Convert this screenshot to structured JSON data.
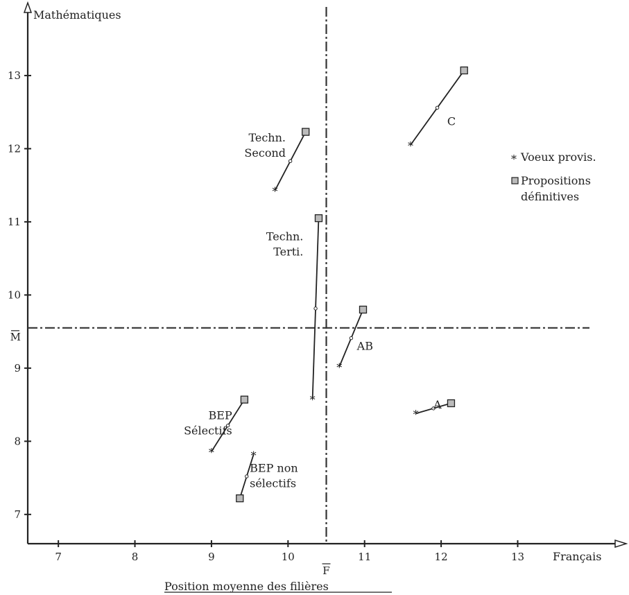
{
  "chart_data": {
    "type": "scatter",
    "title": "Position moyenne des filières",
    "xlabel": "Français",
    "ylabel": "Mathématiques",
    "xlim": [
      6.6,
      14.3
    ],
    "ylim": [
      6.6,
      13.9
    ],
    "xticks": [
      "7",
      "8",
      "9",
      "10",
      "11",
      "12",
      "13"
    ],
    "xtick_values": [
      7,
      8,
      9,
      10,
      11,
      12,
      13
    ],
    "yticks": [
      "7",
      "8",
      "9",
      "10",
      "11",
      "12",
      "13"
    ],
    "ytick_values": [
      7,
      8,
      9,
      10,
      11,
      12,
      13
    ],
    "reference_lines": {
      "mean_math": {
        "value": 9.55,
        "label": "M"
      },
      "mean_french": {
        "value": 10.5,
        "label": "F"
      }
    },
    "legend": {
      "position": "right",
      "entries": [
        {
          "marker": "*",
          "label": "Voeux provis."
        },
        {
          "marker": "square",
          "label": "Propositions définitives",
          "lines": [
            "Propositions",
            "définitives"
          ]
        }
      ]
    },
    "groups": [
      {
        "name": "Techn. Second",
        "lines": [
          "Techn.",
          "Second"
        ],
        "voeux": [
          9.83,
          11.43
        ],
        "propositions": [
          10.23,
          12.23
        ]
      },
      {
        "name": "Techn. Terti.",
        "lines": [
          "Techn.",
          "Terti."
        ],
        "voeux": [
          10.32,
          8.58
        ],
        "propositions": [
          10.4,
          11.05
        ]
      },
      {
        "name": "C",
        "lines": [
          "C"
        ],
        "voeux": [
          11.6,
          12.05
        ],
        "propositions": [
          12.3,
          13.07
        ]
      },
      {
        "name": "AB",
        "lines": [
          "AB"
        ],
        "voeux": [
          10.67,
          9.02
        ],
        "propositions": [
          10.98,
          9.8
        ]
      },
      {
        "name": "A",
        "lines": [
          "A"
        ],
        "voeux": [
          11.67,
          8.38
        ],
        "propositions": [
          12.13,
          8.52
        ]
      },
      {
        "name": "BEP Sélectifs",
        "lines": [
          "BEP",
          "Sélectifs"
        ],
        "voeux": [
          9.0,
          7.86
        ],
        "propositions": [
          9.43,
          8.57
        ]
      },
      {
        "name": "BEP non sélectifs",
        "lines": [
          "BEP non",
          "sélectifs"
        ],
        "voeux": [
          9.55,
          7.82
        ],
        "propositions": [
          9.37,
          7.22
        ]
      }
    ]
  }
}
